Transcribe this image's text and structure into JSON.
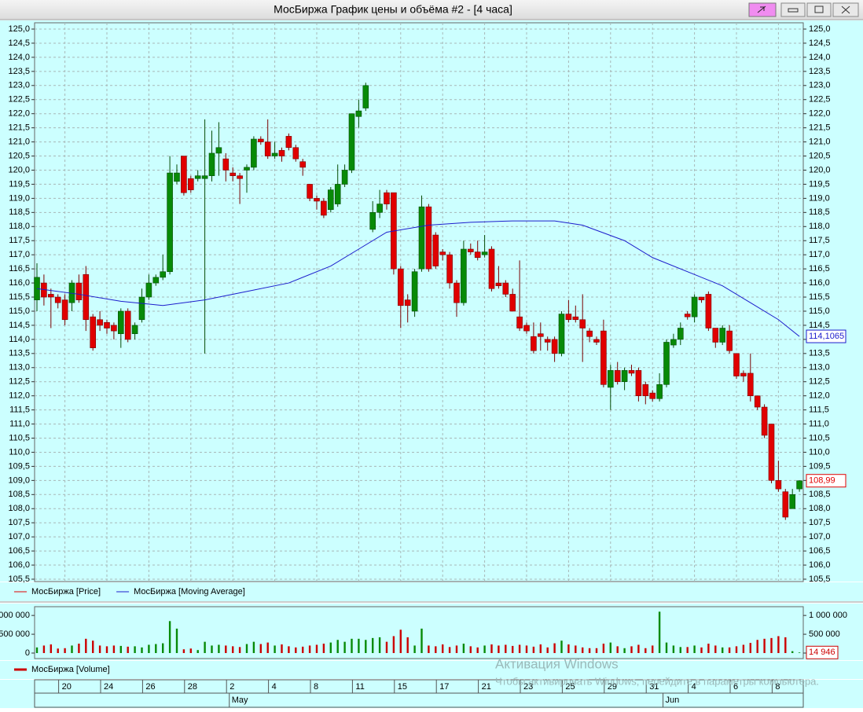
{
  "chart_data": [
    {
      "type": "candlestick",
      "title": "МосБиржа График цены и объёма #2 - [4 часа]",
      "ylim": [
        105.5,
        125.0
      ],
      "yticks": [
        {
          "value": 105.5,
          "label": "105,5"
        },
        {
          "value": 106.0,
          "label": "106,0"
        },
        {
          "value": 106.5,
          "label": "106,5"
        },
        {
          "value": 107.0,
          "label": "107,0"
        },
        {
          "value": 107.5,
          "label": "107,5"
        },
        {
          "value": 108.0,
          "label": "108,0"
        },
        {
          "value": 108.5,
          "label": "108,5"
        },
        {
          "value": 109.0,
          "label": "109,0"
        },
        {
          "value": 109.5,
          "label": "109,5"
        },
        {
          "value": 110.0,
          "label": "110,0"
        },
        {
          "value": 110.5,
          "label": "110,5"
        },
        {
          "value": 111.0,
          "label": "111,0"
        },
        {
          "value": 111.5,
          "label": "111,5"
        },
        {
          "value": 112.0,
          "label": "112,0"
        },
        {
          "value": 112.5,
          "label": "112,5"
        },
        {
          "value": 113.0,
          "label": "113,0"
        },
        {
          "value": 113.5,
          "label": "113,5"
        },
        {
          "value": 114.0,
          "label": "114,0"
        },
        {
          "value": 114.5,
          "label": "114,5"
        },
        {
          "value": 115.0,
          "label": "115,0"
        },
        {
          "value": 115.5,
          "label": "115,5"
        },
        {
          "value": 116.0,
          "label": "116,0"
        },
        {
          "value": 116.5,
          "label": "116,5"
        },
        {
          "value": 117.0,
          "label": "117,0"
        },
        {
          "value": 117.5,
          "label": "117,5"
        },
        {
          "value": 118.0,
          "label": "118,0"
        },
        {
          "value": 118.5,
          "label": "118,5"
        },
        {
          "value": 119.0,
          "label": "119,0"
        },
        {
          "value": 119.5,
          "label": "119,5"
        },
        {
          "value": 120.0,
          "label": "120,0"
        },
        {
          "value": 120.5,
          "label": "120,5"
        },
        {
          "value": 121.0,
          "label": "121,0"
        },
        {
          "value": 121.5,
          "label": "121,5"
        },
        {
          "value": 122.0,
          "label": "122,0"
        },
        {
          "value": 122.5,
          "label": "122,5"
        },
        {
          "value": 123.0,
          "label": "123,0"
        },
        {
          "value": 123.5,
          "label": "123,5"
        },
        {
          "value": 124.0,
          "label": "124,0"
        },
        {
          "value": 124.5,
          "label": "124,5"
        },
        {
          "value": 125.0,
          "label": "125,0"
        }
      ],
      "grid": true,
      "series": [
        {
          "name": "МосБиржа [Price]",
          "color": "#e00000",
          "up_color": "#078a07",
          "open": [
            115.4,
            116.0,
            115.6,
            115.5,
            115.4,
            115.3,
            116.0,
            116.3,
            114.8,
            114.7,
            114.6,
            114.5,
            114.2,
            115.0,
            114.2,
            114.7,
            115.5,
            116.0,
            116.2,
            116.4,
            119.6,
            120.5,
            119.7,
            119.7,
            119.7,
            119.8,
            120.6,
            120.4,
            119.9,
            119.8,
            120.0,
            120.1,
            121.1,
            121.0,
            120.5,
            120.7,
            121.2,
            120.8,
            120.3,
            119.5,
            119.0,
            118.9,
            118.6,
            118.8,
            119.5,
            120.0,
            121.9,
            122.2,
            117.9,
            118.5,
            119.2,
            119.2,
            116.5,
            115.4,
            115.0,
            116.5,
            118.7,
            117.7,
            117.1,
            117.0,
            116.0,
            115.3,
            117.2,
            117.1,
            117.0,
            117.2,
            116.0,
            116.0,
            115.6,
            114.8,
            114.5,
            114.1,
            114.2,
            114.0,
            114.0,
            113.5,
            114.9,
            114.8,
            114.7,
            114.3,
            114.0,
            114.3,
            112.3,
            112.9,
            112.5,
            112.9,
            112.9,
            112.4,
            112.1,
            111.9,
            112.4,
            113.8,
            114.0,
            114.9,
            114.8,
            115.5,
            115.6,
            114.4,
            113.9,
            114.3,
            113.5,
            112.8,
            112.8,
            112.0,
            111.6,
            111.0,
            109.0,
            108.6,
            108.0,
            108.7
          ],
          "high": [
            116.7,
            116.3,
            115.8,
            115.6,
            115.6,
            116.1,
            116.3,
            116.6,
            114.9,
            115.0,
            114.7,
            114.6,
            115.1,
            115.1,
            114.6,
            115.8,
            116.3,
            116.3,
            117.0,
            120.5,
            120.2,
            120.5,
            119.8,
            120.0,
            121.8,
            121.4,
            121.7,
            120.6,
            120.1,
            119.9,
            120.2,
            121.2,
            121.2,
            121.8,
            121.0,
            120.8,
            121.3,
            120.9,
            120.4,
            119.5,
            119.1,
            119.0,
            119.4,
            120.2,
            120.2,
            122.0,
            122.5,
            123.1,
            118.9,
            119.3,
            119.3,
            119.2,
            116.6,
            115.6,
            116.5,
            119.1,
            118.8,
            117.8,
            117.2,
            117.1,
            116.1,
            117.5,
            117.4,
            117.5,
            117.7,
            117.3,
            116.6,
            116.1,
            115.8,
            116.8,
            114.6,
            114.6,
            114.6,
            114.1,
            114.1,
            115.0,
            115.4,
            115.2,
            115.6,
            114.4,
            114.1,
            114.7,
            113.1,
            113.2,
            113.0,
            113.1,
            113.0,
            112.5,
            112.2,
            112.8,
            114.0,
            114.2,
            114.6,
            115.0,
            115.6,
            115.5,
            115.7,
            114.4,
            114.5,
            114.5,
            113.5,
            112.9,
            113.5,
            112.0,
            111.7,
            111.0,
            109.7,
            108.7,
            108.7,
            109.0
          ],
          "low": [
            115.0,
            115.2,
            114.4,
            115.1,
            114.5,
            115.0,
            115.3,
            114.3,
            113.6,
            114.3,
            114.2,
            114.0,
            113.7,
            113.9,
            114.0,
            114.6,
            115.4,
            115.9,
            116.1,
            116.3,
            119.5,
            119.1,
            119.2,
            119.6,
            113.5,
            119.6,
            119.8,
            119.6,
            119.6,
            118.8,
            119.2,
            120.0,
            120.9,
            120.4,
            120.4,
            120.3,
            120.7,
            120.3,
            119.8,
            118.9,
            118.6,
            118.3,
            118.5,
            118.7,
            119.4,
            119.9,
            121.5,
            122.1,
            117.8,
            118.3,
            118.6,
            116.3,
            114.4,
            114.6,
            114.8,
            116.4,
            116.4,
            116.5,
            116.8,
            115.8,
            114.8,
            115.2,
            117.0,
            116.8,
            116.9,
            115.7,
            115.8,
            115.5,
            115.0,
            114.3,
            114.2,
            113.5,
            113.6,
            113.6,
            113.2,
            113.4,
            114.6,
            114.6,
            113.2,
            113.9,
            113.8,
            112.3,
            111.5,
            112.4,
            112.2,
            112.7,
            111.8,
            111.7,
            111.8,
            111.8,
            112.3,
            113.7,
            113.8,
            114.7,
            114.6,
            115.3,
            114.3,
            113.7,
            113.8,
            113.5,
            112.6,
            112.5,
            111.8,
            111.5,
            110.5,
            108.9,
            108.6,
            107.6,
            108.0,
            108.6
          ],
          "close": [
            116.2,
            115.5,
            115.5,
            115.3,
            114.7,
            116.0,
            115.4,
            114.7,
            113.7,
            114.5,
            114.4,
            114.3,
            115.0,
            114.0,
            114.5,
            115.5,
            116.0,
            116.2,
            116.4,
            119.9,
            119.9,
            119.2,
            119.3,
            119.8,
            119.8,
            120.6,
            120.8,
            120.0,
            119.8,
            119.7,
            120.1,
            121.1,
            121.0,
            120.5,
            120.6,
            120.5,
            120.8,
            120.4,
            120.1,
            119.0,
            118.9,
            118.4,
            119.3,
            119.5,
            120.0,
            122.0,
            122.1,
            123.0,
            118.5,
            118.8,
            118.8,
            116.5,
            115.2,
            115.2,
            116.4,
            118.7,
            116.5,
            116.6,
            117.0,
            116.0,
            115.3,
            117.2,
            117.1,
            116.9,
            117.1,
            115.8,
            115.9,
            115.6,
            115.0,
            114.4,
            114.3,
            113.6,
            114.1,
            113.9,
            113.5,
            114.9,
            114.7,
            114.7,
            114.4,
            114.1,
            113.9,
            112.4,
            112.9,
            112.5,
            112.9,
            112.8,
            112.0,
            112.0,
            111.9,
            112.4,
            113.9,
            114.0,
            114.4,
            114.8,
            115.5,
            115.4,
            114.4,
            113.9,
            114.4,
            113.6,
            112.7,
            112.7,
            112.0,
            111.6,
            110.6,
            109.0,
            108.7,
            107.7,
            108.5,
            108.99
          ],
          "last_value": {
            "value": 108.99,
            "label": "108,99"
          }
        },
        {
          "name": "МосБиржа [Moving Average]",
          "color": "#1c1ccc",
          "x": [
            0,
            6,
            12,
            18,
            24,
            30,
            36,
            42,
            46,
            50,
            56,
            62,
            68,
            74,
            78,
            84,
            88,
            94,
            98,
            102,
            106,
            109
          ],
          "values": [
            115.8,
            115.6,
            115.35,
            115.2,
            115.4,
            115.7,
            116.0,
            116.6,
            117.2,
            117.8,
            118.05,
            118.15,
            118.2,
            118.2,
            118.05,
            117.5,
            116.9,
            116.3,
            115.9,
            115.3,
            114.7,
            114.1065
          ],
          "last_value": {
            "value": 114.1065,
            "label": "114,1065"
          }
        }
      ]
    },
    {
      "type": "bar",
      "ylim": [
        0,
        1170000
      ],
      "yticks": [
        0,
        {
          "value": 500000,
          "label": "500 000"
        },
        {
          "value": 1000000,
          "label": "1 000 000"
        }
      ],
      "series": [
        {
          "name": "МосБиржа [Volume]",
          "color": "#cc0000",
          "values": [
            150000,
            200000,
            230000,
            120000,
            130000,
            200000,
            250000,
            380000,
            330000,
            200000,
            180000,
            200000,
            190000,
            170000,
            180000,
            150000,
            220000,
            240000,
            260000,
            850000,
            650000,
            100000,
            120000,
            80000,
            300000,
            200000,
            220000,
            200000,
            180000,
            160000,
            240000,
            300000,
            240000,
            280000,
            200000,
            230000,
            180000,
            150000,
            170000,
            200000,
            220000,
            250000,
            280000,
            350000,
            300000,
            380000,
            380000,
            350000,
            400000,
            420000,
            300000,
            450000,
            620000,
            420000,
            200000,
            650000,
            200000,
            180000,
            230000,
            160000,
            200000,
            250000,
            180000,
            150000,
            200000,
            230000,
            200000,
            220000,
            190000,
            220000,
            200000,
            170000,
            230000,
            150000,
            260000,
            330000,
            230000,
            200000,
            150000,
            130000,
            130000,
            250000,
            280000,
            180000,
            130000,
            180000,
            220000,
            130000,
            200000,
            1100000,
            280000,
            200000,
            160000,
            160000,
            200000,
            150000,
            250000,
            200000,
            150000,
            150000,
            180000,
            220000,
            270000,
            350000,
            380000,
            400000,
            450000,
            420000,
            50000,
            14946
          ],
          "last_value": {
            "value": 14946,
            "label": "14 946"
          }
        }
      ]
    }
  ],
  "x_axis": {
    "xticks": [
      {
        "value": 4,
        "label": "20"
      },
      {
        "value": 10,
        "label": "24"
      },
      {
        "value": 16,
        "label": "26"
      },
      {
        "value": 22,
        "label": "28"
      },
      {
        "value": 28,
        "label": "2"
      },
      {
        "value": 34,
        "label": "4"
      },
      {
        "value": 40,
        "label": "8"
      },
      {
        "value": 46,
        "label": "11"
      },
      {
        "value": 52,
        "label": "15"
      },
      {
        "value": 58,
        "label": "17"
      },
      {
        "value": 64,
        "label": "21"
      },
      {
        "value": 70,
        "label": "23"
      },
      {
        "value": 76,
        "label": "25"
      },
      {
        "value": 82,
        "label": "29"
      },
      {
        "value": 88,
        "label": "31"
      },
      {
        "value": 94,
        "label": "4"
      },
      {
        "value": 100,
        "label": "6"
      },
      {
        "value": 106,
        "label": "8"
      }
    ],
    "months": [
      {
        "value": 27.5,
        "label": "May"
      },
      {
        "value": 89.5,
        "label": "Jun"
      }
    ]
  },
  "watermark": {
    "title": "Активация Windows",
    "text": "Чтобы активировать Windows, перейдите в параметры компьютера."
  }
}
